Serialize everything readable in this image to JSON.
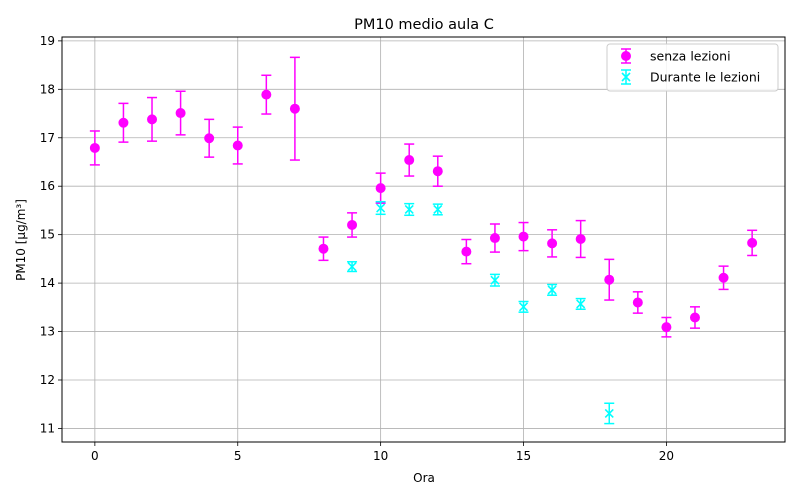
{
  "chart_data": {
    "type": "scatter",
    "title": "PM10 medio aula C",
    "xlabel": "Ora",
    "ylabel": "PM10 [µg/m³]",
    "xlim": [
      -1.15,
      24.15
    ],
    "ylim": [
      10.72,
      19.08
    ],
    "xticks": [
      0,
      5,
      10,
      15,
      20
    ],
    "yticks": [
      11,
      12,
      13,
      14,
      15,
      16,
      17,
      18,
      19
    ],
    "grid": true,
    "legend_position": "top-right",
    "series": [
      {
        "name": "senza lezioni",
        "color": "#ff00ff",
        "marker": "circle",
        "points": [
          {
            "x": 0,
            "y": 16.79,
            "err": 0.35
          },
          {
            "x": 1,
            "y": 17.31,
            "err": 0.4
          },
          {
            "x": 2,
            "y": 17.38,
            "err": 0.45
          },
          {
            "x": 3,
            "y": 17.51,
            "err": 0.45
          },
          {
            "x": 4,
            "y": 16.99,
            "err": 0.39
          },
          {
            "x": 5,
            "y": 16.84,
            "err": 0.38
          },
          {
            "x": 6,
            "y": 17.89,
            "err": 0.4
          },
          {
            "x": 7,
            "y": 17.6,
            "err": 1.06
          },
          {
            "x": 8,
            "y": 14.71,
            "err": 0.24
          },
          {
            "x": 9,
            "y": 15.2,
            "err": 0.25
          },
          {
            "x": 10,
            "y": 15.96,
            "err": 0.31
          },
          {
            "x": 11,
            "y": 16.54,
            "err": 0.33
          },
          {
            "x": 12,
            "y": 16.31,
            "err": 0.31
          },
          {
            "x": 13,
            "y": 14.65,
            "err": 0.25
          },
          {
            "x": 14,
            "y": 14.93,
            "err": 0.29
          },
          {
            "x": 15,
            "y": 14.96,
            "err": 0.29
          },
          {
            "x": 16,
            "y": 14.82,
            "err": 0.28
          },
          {
            "x": 17,
            "y": 14.91,
            "err": 0.38
          },
          {
            "x": 18,
            "y": 14.07,
            "err": 0.42
          },
          {
            "x": 19,
            "y": 13.6,
            "err": 0.22
          },
          {
            "x": 20,
            "y": 13.09,
            "err": 0.2
          },
          {
            "x": 21,
            "y": 13.29,
            "err": 0.22
          },
          {
            "x": 22,
            "y": 14.11,
            "err": 0.24
          },
          {
            "x": 23,
            "y": 14.83,
            "err": 0.26
          }
        ]
      },
      {
        "name": "Durante le lezioni",
        "color": "#00ffff",
        "marker": "x",
        "points": [
          {
            "x": 9,
            "y": 14.34,
            "err": 0.1
          },
          {
            "x": 10,
            "y": 15.55,
            "err": 0.13
          },
          {
            "x": 11,
            "y": 15.52,
            "err": 0.12
          },
          {
            "x": 12,
            "y": 15.52,
            "err": 0.11
          },
          {
            "x": 14,
            "y": 14.06,
            "err": 0.12
          },
          {
            "x": 15,
            "y": 13.51,
            "err": 0.11
          },
          {
            "x": 16,
            "y": 13.86,
            "err": 0.11
          },
          {
            "x": 17,
            "y": 13.57,
            "err": 0.11
          },
          {
            "x": 18,
            "y": 11.31,
            "err": 0.21
          }
        ]
      }
    ]
  }
}
